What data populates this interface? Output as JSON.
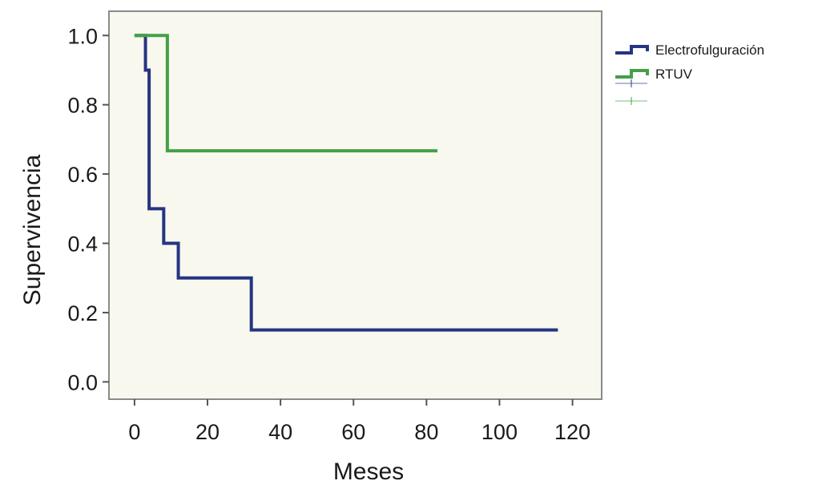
{
  "chart_data": {
    "type": "line",
    "step": true,
    "xlabel": "Meses",
    "ylabel": "Supervivencia",
    "xlim": [
      -7,
      128
    ],
    "ylim": [
      -0.05,
      1.07
    ],
    "xticks": [
      0,
      20,
      40,
      60,
      80,
      100,
      120
    ],
    "yticks": [
      0.0,
      0.2,
      0.4,
      0.6,
      0.8,
      1.0
    ],
    "ytick_labels": [
      "0.0",
      "0.2",
      "0.4",
      "0.6",
      "0.8",
      "1.0"
    ],
    "grid": false,
    "legend_position": "right",
    "plot_background": "#f8f8ef",
    "series": [
      {
        "name": "Electrofulguración",
        "color": "#253584",
        "x": [
          0,
          3,
          3,
          4,
          8,
          12,
          32,
          116
        ],
        "y": [
          1.0,
          1.0,
          0.9,
          0.5,
          0.4,
          0.3,
          0.15,
          0.15
        ]
      },
      {
        "name": "RTUV",
        "color": "#43a047",
        "x": [
          0,
          9,
          83
        ],
        "y": [
          1.0,
          0.667,
          0.667
        ]
      }
    ]
  }
}
